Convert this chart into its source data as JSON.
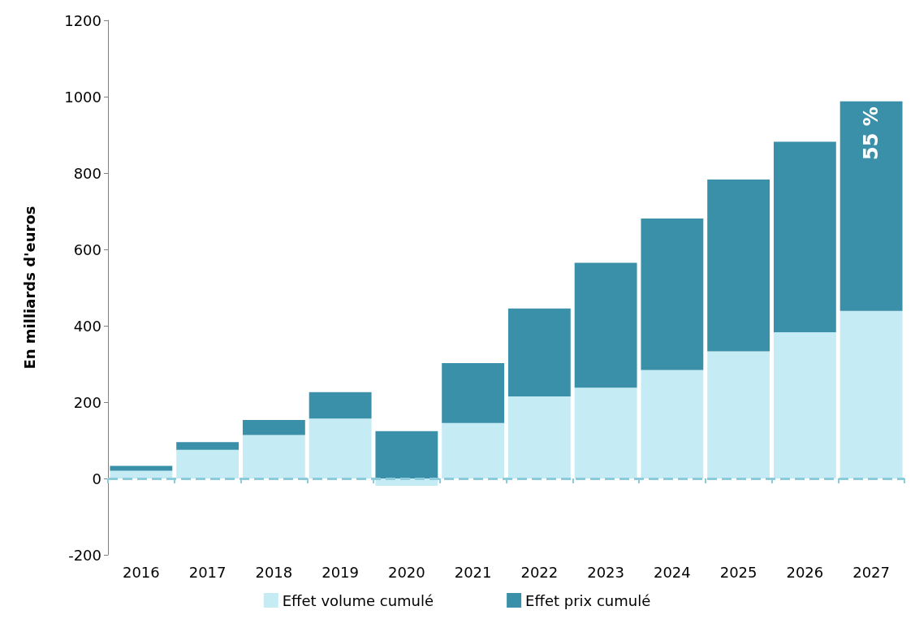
{
  "chart_data": {
    "type": "bar",
    "stacked": true,
    "ylabel": "En milliards d'euros",
    "categories": [
      "2016",
      "2017",
      "2018",
      "2019",
      "2020",
      "2021",
      "2022",
      "2023",
      "2024",
      "2025",
      "2026",
      "2027"
    ],
    "series": [
      {
        "name": "Effet volume cumulé",
        "color": "#c5ebf5",
        "values": [
          20,
          75,
          114,
          157,
          -19,
          145,
          215,
          238,
          284,
          333,
          383,
          439
        ]
      },
      {
        "name": "Effet prix cumulé",
        "color": "#3a90a8",
        "values": [
          13,
          20,
          39,
          69,
          124,
          157,
          230,
          327,
          397,
          450,
          499,
          549
        ]
      }
    ],
    "ylim": [
      -200,
      1200
    ],
    "yticks": [
      -200,
      0,
      200,
      400,
      600,
      800,
      1000,
      1200
    ],
    "grid": false,
    "legend": "bottom",
    "ref_lines": [
      {
        "axis": "y",
        "value": 0,
        "color": "#8ccbdc",
        "line_style": "dashed"
      }
    ],
    "annotations": [
      "55 %"
    ]
  }
}
